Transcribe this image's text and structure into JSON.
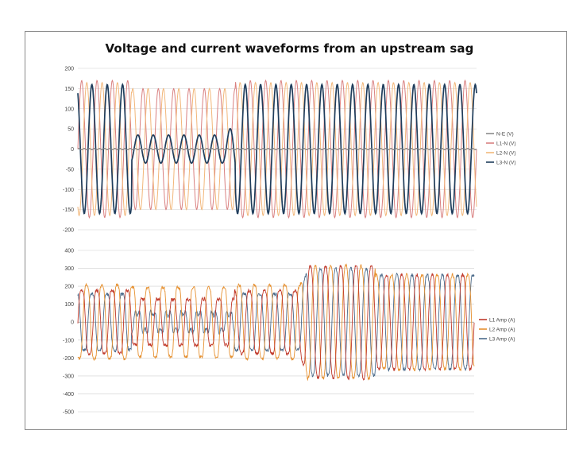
{
  "title": "Voltage and current waveforms from an upstream sag",
  "chart_data": [
    {
      "type": "line",
      "ylim": [
        -200,
        200
      ],
      "yticks": [
        "200",
        "150",
        "100",
        "50",
        "0",
        "-50",
        "-100",
        "-150",
        "-200"
      ],
      "grid": true,
      "legend_position": "right",
      "cycles_shown": 26,
      "series": [
        {
          "name": "N-E (V)",
          "color": "#8b8b8b",
          "amplitude": 2
        },
        {
          "name": "L1-N (V)",
          "color": "#d98080",
          "amplitude": 170,
          "sag_amplitude": 150,
          "phase_deg": 0
        },
        {
          "name": "L2-N (V)",
          "color": "#f2b77a",
          "amplitude": 165,
          "sag_amplitude": 150,
          "phase_deg": -120
        },
        {
          "name": "L3-N (V)",
          "color": "#1f3d5c",
          "amplitude": 160,
          "sag_amplitude": 35,
          "phase_deg": 120
        }
      ],
      "sag_start_fraction": 0.135,
      "sag_end_fraction": 0.395
    },
    {
      "type": "line",
      "ylim": [
        -500,
        400
      ],
      "yticks": [
        "400",
        "300",
        "200",
        "100",
        "0",
        "-100",
        "-200",
        "-300",
        "-400",
        "-500"
      ],
      "grid": true,
      "legend_position": "right",
      "cycles_shown": 26,
      "series": [
        {
          "name": "L1 Amp (A)",
          "color": "#c0392b",
          "amplitude": 200,
          "phase_deg": 0
        },
        {
          "name": "L2 Amp (A)",
          "color": "#e6902f",
          "amplitude": 230,
          "phase_deg": -120
        },
        {
          "name": "L3 Amp (A)",
          "color": "#4a6a8a",
          "amplitude": 180,
          "phase_deg": 120
        }
      ],
      "disturbance_fraction": 0.56,
      "post_disturbance_amplitude": 340
    }
  ]
}
